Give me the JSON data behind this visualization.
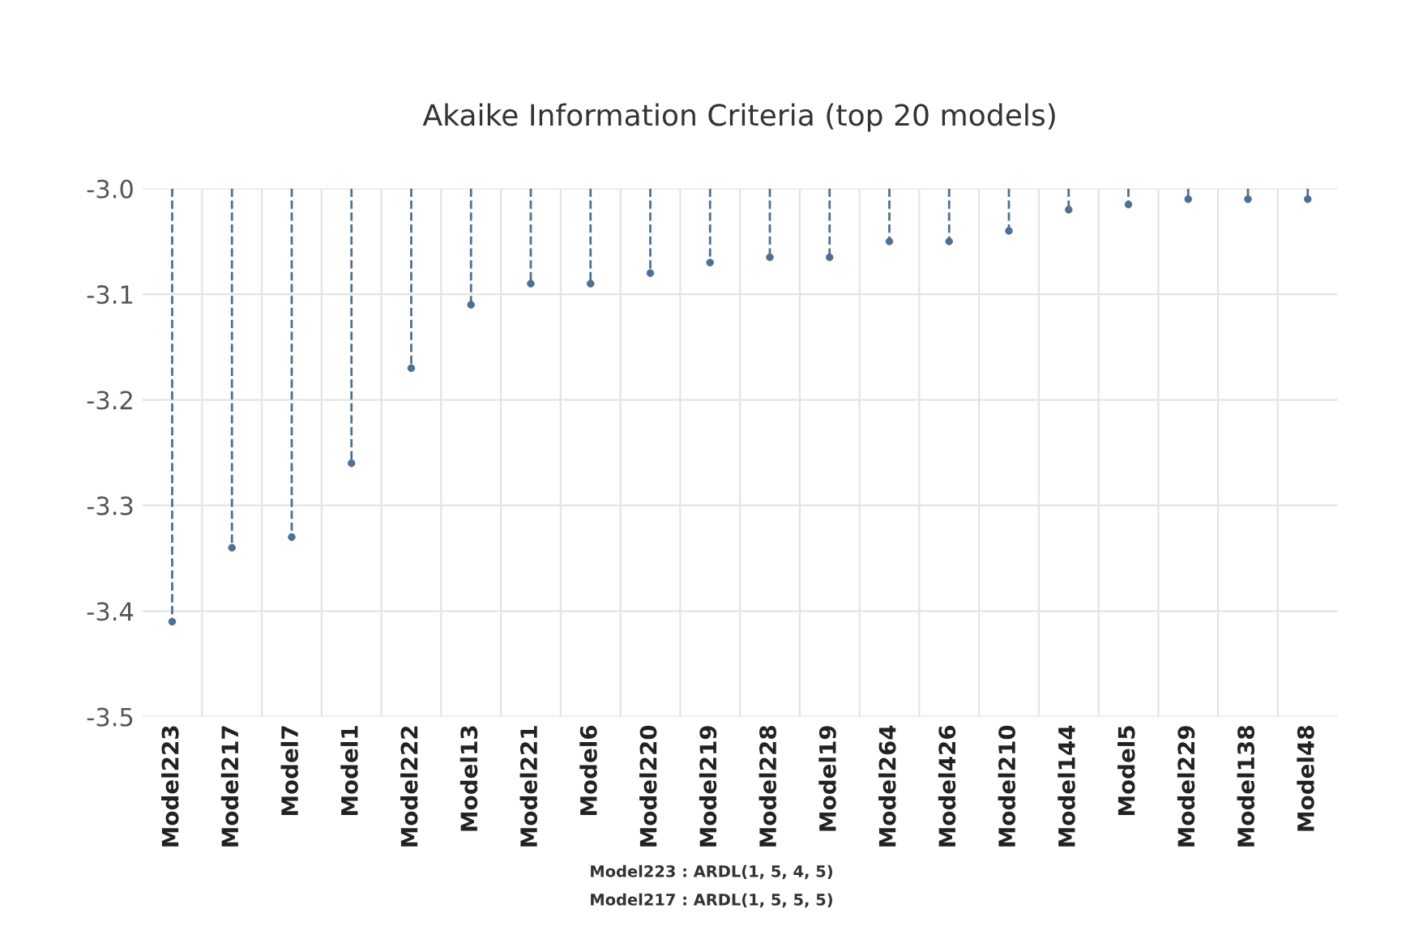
{
  "chart_data": {
    "type": "lollipop",
    "title": "Akaike Information Criteria (top 20 models)",
    "categories": [
      "Model223",
      "Model217",
      "Model7",
      "Model1",
      "Model222",
      "Model13",
      "Model221",
      "Model6",
      "Model220",
      "Model219",
      "Model228",
      "Model19",
      "Model264",
      "Model426",
      "Model210",
      "Model144",
      "Model5",
      "Model229",
      "Model138",
      "Model48"
    ],
    "series": [
      {
        "color": "#4f6f93",
        "values": [
          -3.41,
          -3.34,
          -3.33,
          -3.26,
          -3.17,
          -3.11,
          -3.09,
          -3.09,
          -3.08,
          -3.07,
          -3.065,
          -3.065,
          -3.05,
          -3.05,
          -3.04,
          -3.02,
          -3.015,
          -3.01,
          -3.01,
          -3.01
        ]
      }
    ],
    "ylim": [
      -3.5,
      -3.0
    ],
    "yticks": [
      -3.5,
      -3.4,
      -3.3,
      -3.2,
      -3.1,
      {
        "value": -3.0,
        "label": "-3.0"
      }
    ],
    "grid": true,
    "marker": "circle",
    "line_style": "dashed",
    "annotations": [
      "Model223 : ARDL(1, 5, 4, 5)",
      "Model217 : ARDL(1, 5, 5, 5)"
    ]
  }
}
